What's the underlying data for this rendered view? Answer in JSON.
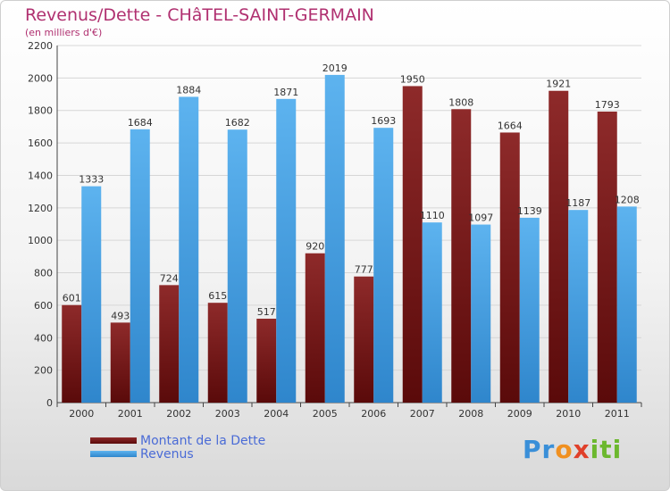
{
  "chart_data": {
    "type": "bar",
    "title": "Revenus/Dette - CHâTEL-SAINT-GERMAIN",
    "subtitle": "(en milliers d'€)",
    "categories": [
      "2000",
      "2001",
      "2002",
      "2003",
      "2004",
      "2005",
      "2006",
      "2007",
      "2008",
      "2009",
      "2010",
      "2011"
    ],
    "series": [
      {
        "name": "Montant de la Dette",
        "color": "#7a1a1a",
        "values": [
          601,
          493,
          724,
          615,
          517,
          920,
          777,
          1950,
          1808,
          1664,
          1921,
          1793
        ]
      },
      {
        "name": "Revenus",
        "color": "#4ea6e6",
        "values": [
          1333,
          1684,
          1884,
          1682,
          1871,
          2019,
          1693,
          1110,
          1097,
          1139,
          1187,
          1208
        ]
      }
    ],
    "ylim": [
      0,
      2200
    ],
    "yticks": [
      0,
      200,
      400,
      600,
      800,
      1000,
      1200,
      1400,
      1600,
      1800,
      2000,
      2200
    ],
    "grid": true,
    "legend": "bottom-left"
  },
  "logo": {
    "letters": [
      "P",
      "r",
      "o",
      "x",
      "i",
      "t",
      "i"
    ],
    "colors": [
      "#3a8fd8",
      "#3a8fd8",
      "#f09020",
      "#e0402a",
      "#6cb82e",
      "#6cb82e",
      "#6cb82e"
    ]
  }
}
